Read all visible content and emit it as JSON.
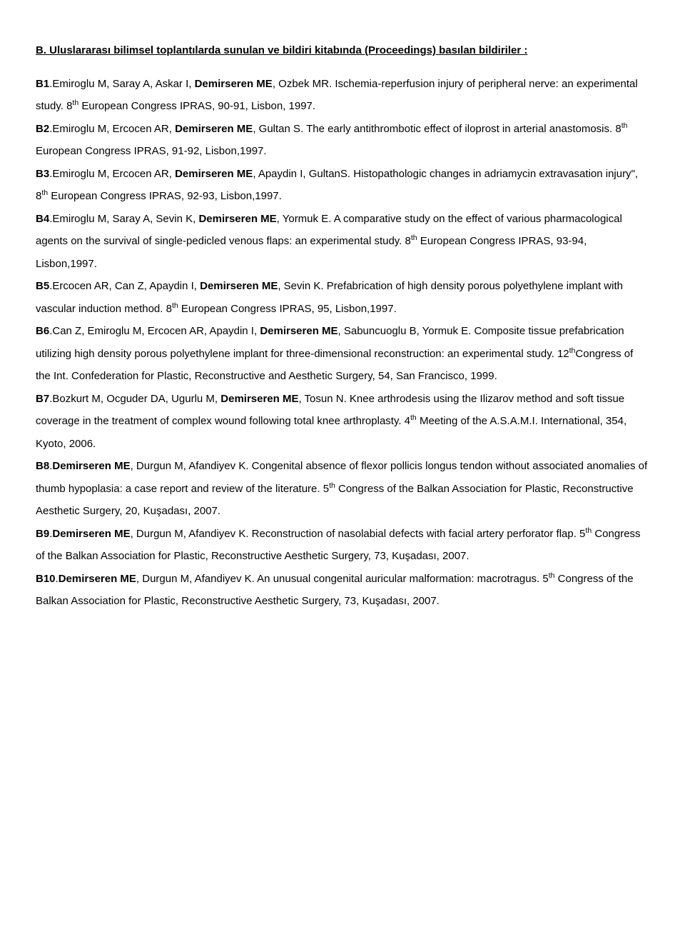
{
  "section_heading": "B. Uluslararası bilimsel toplantılarda sunulan ve bildiri kitabında (Proceedings) basılan bildiriler :",
  "entries": {
    "b1": {
      "label": "B1",
      "authors_pre": ".Emiroglu M, Saray A, Askar I, ",
      "authors_bold": "Demirseren ME",
      "authors_post": ", Ozbek MR. Ischemia-reperfusion injury of peripheral nerve: an experimental study. 8",
      "sup": "th",
      "tail": " European Congress IPRAS, 90-91, Lisbon, 1997."
    },
    "b2": {
      "label": "B2",
      "authors_pre": ".Emiroglu M, Ercocen AR, ",
      "authors_bold": "Demirseren ME",
      "authors_post": ", Gultan S. The early antithrombotic effect of iloprost in arterial anastomosis. 8",
      "sup": "th",
      "tail": " European Congress IPRAS, 91-92, Lisbon,1997."
    },
    "b3": {
      "label": "B3",
      "authors_pre": ".Emiroglu M, Ercocen AR, ",
      "authors_bold": "Demirseren ME",
      "authors_post": ", Apaydin I, GultanS. Histopathologic changes in adriamycin extravasation injury\", 8",
      "sup": "th",
      "tail": " European Congress IPRAS, 92-93, Lisbon,1997."
    },
    "b4": {
      "label": "B4",
      "authors_pre": ".Emiroglu M, Saray A, Sevin K, ",
      "authors_bold": "Demirseren ME",
      "authors_post": ", Yormuk E. A comparative study on the effect of various pharmacological agents on the survival of single-pedicled venous flaps: an experimental study. 8",
      "sup": "th",
      "tail": " European Congress IPRAS, 93-94, Lisbon,1997."
    },
    "b5": {
      "label": "B5",
      "authors_pre": ".Ercocen AR, Can Z, Apaydin I, ",
      "authors_bold": "Demirseren ME",
      "authors_post": ", Sevin K. Prefabrication of high density porous polyethylene implant with vascular induction method. 8",
      "sup": "th",
      "tail": " European Congress IPRAS, 95, Lisbon,1997."
    },
    "b6": {
      "label": "B6",
      "authors_pre": ".Can Z, Emiroglu M, Ercocen AR, Apaydin I, ",
      "authors_bold": "Demirseren ME",
      "authors_post": ", Sabuncuoglu B, Yormuk E. Composite tissue prefabrication utilizing high density porous polyethylene implant for three-dimensional reconstruction: an experimental study. 12",
      "sup": "th",
      "tail": "Congress of the Int. Confederation for Plastic, Reconstructive and Aesthetic Surgery, 54, San Francisco, 1999."
    },
    "b7": {
      "label": "B7",
      "authors_pre": ".Bozkurt M, Ocguder DA, Ugurlu M, ",
      "authors_bold": "Demirseren ME",
      "authors_post": ", Tosun N. Knee arthrodesis using the Ilizarov method and soft tissue coverage in the treatment of complex wound following total knee arthroplasty. 4",
      "sup": "th",
      "tail": " Meeting of the A.S.A.M.I. International, 354, Kyoto, 2006."
    },
    "b8": {
      "label": "B8",
      "authors_pre": ".",
      "authors_bold": "Demirseren ME",
      "authors_post": ", Durgun M, Afandiyev K. Congenital absence of flexor pollicis longus tendon without associated anomalies of thumb hypoplasia: a case report and review of the literature. 5",
      "sup": "th",
      "tail": " Congress of the Balkan Association for Plastic, Reconstructive Aesthetic Surgery, 20, Kuşadası, 2007."
    },
    "b9": {
      "label": "B9",
      "authors_pre": ".",
      "authors_bold": "Demirseren ME",
      "authors_post": ", Durgun M, Afandiyev K. Reconstruction of nasolabial defects with facial artery perforator flap. 5",
      "sup": "th",
      "tail": " Congress of the Balkan Association for Plastic, Reconstructive Aesthetic Surgery, 73, Kuşadası, 2007."
    },
    "b10": {
      "label": "B10",
      "authors_pre": ".",
      "authors_bold": "Demirseren ME",
      "authors_post": ", Durgun M, Afandiyev K. An unusual congenital auricular malformation: macrotragus. 5",
      "sup": "th",
      "tail": " Congress of the Balkan Association for Plastic, Reconstructive Aesthetic Surgery, 73, Kuşadası, 2007."
    }
  }
}
